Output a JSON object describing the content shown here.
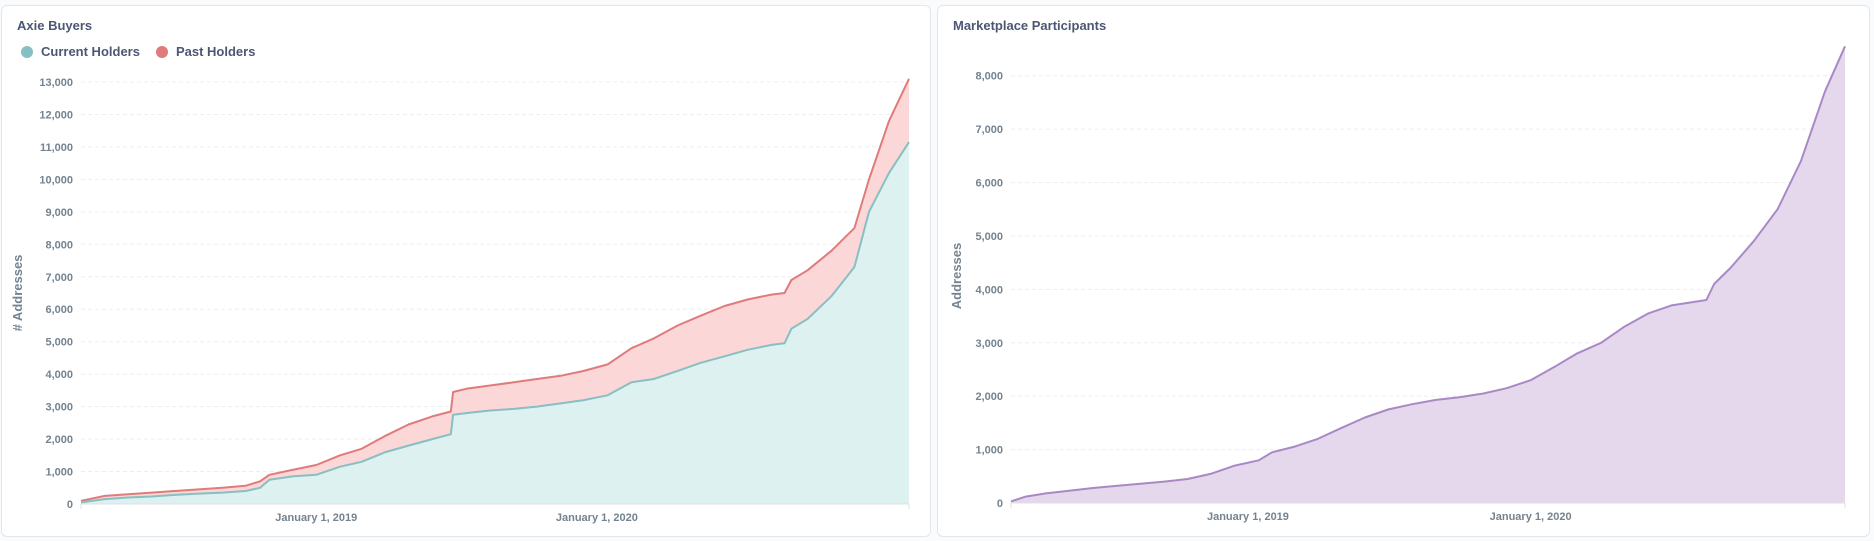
{
  "colors": {
    "current_holders": "#88bfc2",
    "current_holders_fill": "#dcf1f0",
    "past_holders": "#e07b7b",
    "past_holders_fill": "#fbd7d7",
    "participants": "#a989c5",
    "participants_fill": "#e6d8ec"
  },
  "chart_data": [
    {
      "type": "area",
      "title": "Axie Buyers",
      "ylabel": "# Addresses",
      "xlabel": "",
      "legend_position": "top-left",
      "grid": "horizontal dashed",
      "stacked": true,
      "x_range": [
        "2018-03-01",
        "2021-02-10"
      ],
      "ylim": [
        0,
        13000
      ],
      "y_ticks": [
        0,
        1000,
        2000,
        3000,
        4000,
        5000,
        6000,
        7000,
        8000,
        9000,
        10000,
        11000,
        12000,
        13000
      ],
      "y_tick_labels": [
        "0",
        "1,000",
        "2,000",
        "3,000",
        "4,000",
        "5,000",
        "6,000",
        "7,000",
        "8,000",
        "9,000",
        "10,000",
        "11,000",
        "12,000",
        "13,000"
      ],
      "x_ticks": [
        "2019-01-01",
        "2020-01-01"
      ],
      "x_tick_labels": [
        "January 1, 2019",
        "January 1, 2020"
      ],
      "series": [
        {
          "name": "Current Holders",
          "points": [
            [
              "2018-03-01",
              50
            ],
            [
              "2018-04-01",
              150
            ],
            [
              "2018-05-01",
              200
            ],
            [
              "2018-06-01",
              230
            ],
            [
              "2018-07-01",
              280
            ],
            [
              "2018-08-01",
              320
            ],
            [
              "2018-09-01",
              350
            ],
            [
              "2018-10-01",
              400
            ],
            [
              "2018-10-20",
              500
            ],
            [
              "2018-11-01",
              750
            ],
            [
              "2018-12-01",
              850
            ],
            [
              "2019-01-01",
              900
            ],
            [
              "2019-02-01",
              1150
            ],
            [
              "2019-03-01",
              1300
            ],
            [
              "2019-04-01",
              1600
            ],
            [
              "2019-05-01",
              1800
            ],
            [
              "2019-06-01",
              2000
            ],
            [
              "2019-06-25",
              2150
            ],
            [
              "2019-06-28",
              2750
            ],
            [
              "2019-07-15",
              2800
            ],
            [
              "2019-08-15",
              2880
            ],
            [
              "2019-09-15",
              2930
            ],
            [
              "2019-10-15",
              3000
            ],
            [
              "2019-11-15",
              3100
            ],
            [
              "2019-12-15",
              3200
            ],
            [
              "2020-01-15",
              3350
            ],
            [
              "2020-02-15",
              3750
            ],
            [
              "2020-03-15",
              3850
            ],
            [
              "2020-04-15",
              4100
            ],
            [
              "2020-05-15",
              4350
            ],
            [
              "2020-06-15",
              4550
            ],
            [
              "2020-07-15",
              4750
            ],
            [
              "2020-08-15",
              4900
            ],
            [
              "2020-09-01",
              4950
            ],
            [
              "2020-09-10",
              5400
            ],
            [
              "2020-10-01",
              5700
            ],
            [
              "2020-11-01",
              6400
            ],
            [
              "2020-12-01",
              7300
            ],
            [
              "2020-12-20",
              9000
            ],
            [
              "2021-01-15",
              10200
            ],
            [
              "2021-02-10",
              11150
            ]
          ]
        },
        {
          "name": "Past Holders",
          "points": [
            [
              "2018-03-01",
              100
            ],
            [
              "2018-04-01",
              250
            ],
            [
              "2018-05-01",
              300
            ],
            [
              "2018-06-01",
              350
            ],
            [
              "2018-07-01",
              400
            ],
            [
              "2018-08-01",
              450
            ],
            [
              "2018-09-01",
              500
            ],
            [
              "2018-10-01",
              560
            ],
            [
              "2018-10-20",
              700
            ],
            [
              "2018-11-01",
              900
            ],
            [
              "2018-12-01",
              1050
            ],
            [
              "2019-01-01",
              1200
            ],
            [
              "2019-02-01",
              1500
            ],
            [
              "2019-03-01",
              1700
            ],
            [
              "2019-04-01",
              2100
            ],
            [
              "2019-05-01",
              2450
            ],
            [
              "2019-06-01",
              2700
            ],
            [
              "2019-06-25",
              2850
            ],
            [
              "2019-06-28",
              3450
            ],
            [
              "2019-07-15",
              3550
            ],
            [
              "2019-08-15",
              3650
            ],
            [
              "2019-09-15",
              3750
            ],
            [
              "2019-10-15",
              3850
            ],
            [
              "2019-11-15",
              3950
            ],
            [
              "2019-12-15",
              4100
            ],
            [
              "2020-01-15",
              4300
            ],
            [
              "2020-02-15",
              4800
            ],
            [
              "2020-03-15",
              5100
            ],
            [
              "2020-04-15",
              5500
            ],
            [
              "2020-05-15",
              5800
            ],
            [
              "2020-06-15",
              6100
            ],
            [
              "2020-07-15",
              6300
            ],
            [
              "2020-08-15",
              6450
            ],
            [
              "2020-09-01",
              6500
            ],
            [
              "2020-09-10",
              6900
            ],
            [
              "2020-10-01",
              7200
            ],
            [
              "2020-11-01",
              7800
            ],
            [
              "2020-12-01",
              8500
            ],
            [
              "2020-12-20",
              10000
            ],
            [
              "2021-01-15",
              11800
            ],
            [
              "2021-02-10",
              13100
            ]
          ]
        }
      ]
    },
    {
      "type": "area",
      "title": "Marketplace Participants",
      "ylabel": "Addresses",
      "xlabel": "",
      "grid": "horizontal dashed",
      "x_range": [
        "2018-03-01",
        "2021-02-10"
      ],
      "ylim": [
        0,
        8500
      ],
      "y_ticks": [
        0,
        1000,
        2000,
        3000,
        4000,
        5000,
        6000,
        7000,
        8000
      ],
      "y_tick_labels": [
        "0",
        "1,000",
        "2,000",
        "3,000",
        "4,000",
        "5,000",
        "6,000",
        "7,000",
        "8,000"
      ],
      "x_ticks": [
        "2019-01-01",
        "2020-01-01"
      ],
      "x_tick_labels": [
        "January 1, 2019",
        "January 1, 2020"
      ],
      "series": [
        {
          "points": [
            [
              "2018-03-01",
              30
            ],
            [
              "2018-03-20",
              120
            ],
            [
              "2018-04-15",
              180
            ],
            [
              "2018-05-15",
              230
            ],
            [
              "2018-06-15",
              280
            ],
            [
              "2018-07-15",
              320
            ],
            [
              "2018-08-15",
              360
            ],
            [
              "2018-09-15",
              400
            ],
            [
              "2018-10-15",
              450
            ],
            [
              "2018-11-15",
              550
            ],
            [
              "2018-12-15",
              700
            ],
            [
              "2019-01-15",
              800
            ],
            [
              "2019-02-01",
              950
            ],
            [
              "2019-03-01",
              1050
            ],
            [
              "2019-04-01",
              1200
            ],
            [
              "2019-05-01",
              1400
            ],
            [
              "2019-06-01",
              1600
            ],
            [
              "2019-07-01",
              1750
            ],
            [
              "2019-08-01",
              1850
            ],
            [
              "2019-09-01",
              1930
            ],
            [
              "2019-10-01",
              1980
            ],
            [
              "2019-11-01",
              2050
            ],
            [
              "2019-12-01",
              2150
            ],
            [
              "2020-01-01",
              2300
            ],
            [
              "2020-02-01",
              2550
            ],
            [
              "2020-03-01",
              2800
            ],
            [
              "2020-04-01",
              3000
            ],
            [
              "2020-05-01",
              3300
            ],
            [
              "2020-06-01",
              3550
            ],
            [
              "2020-07-01",
              3700
            ],
            [
              "2020-08-15",
              3800
            ],
            [
              "2020-08-25",
              4100
            ],
            [
              "2020-09-15",
              4400
            ],
            [
              "2020-10-15",
              4900
            ],
            [
              "2020-11-15",
              5500
            ],
            [
              "2020-12-15",
              6400
            ],
            [
              "2021-01-15",
              7700
            ],
            [
              "2021-02-10",
              8550
            ]
          ]
        }
      ]
    }
  ]
}
